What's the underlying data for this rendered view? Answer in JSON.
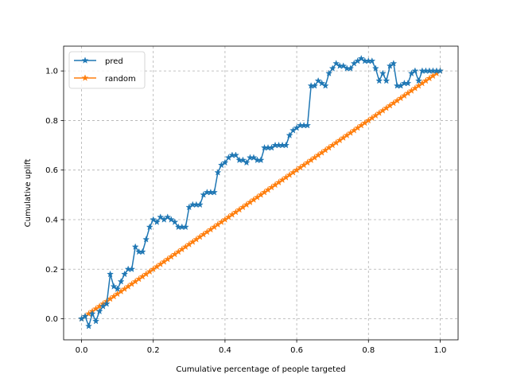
{
  "chart_data": {
    "type": "line",
    "title": "",
    "xlabel": "Cumulative percentage of people targeted",
    "ylabel": "Cumulative uplift",
    "xlim": [
      -0.05,
      1.05
    ],
    "ylim": [
      -0.085,
      1.1
    ],
    "xticks": [
      0.0,
      0.2,
      0.4,
      0.6,
      0.8,
      1.0
    ],
    "yticks": [
      0.0,
      0.2,
      0.4,
      0.6,
      0.8,
      1.0
    ],
    "xtick_labels": [
      "0.0",
      "0.2",
      "0.4",
      "0.6",
      "0.8",
      "1.0"
    ],
    "ytick_labels": [
      "0.0",
      "0.2",
      "0.4",
      "0.6",
      "0.8",
      "1.0"
    ],
    "grid": true,
    "legend_position": "upper-left",
    "series": [
      {
        "name": "pred",
        "color": "#1f77b4",
        "marker": "star",
        "x": [
          0.0,
          0.01,
          0.02,
          0.03,
          0.04,
          0.05,
          0.06,
          0.07,
          0.08,
          0.09,
          0.1,
          0.11,
          0.12,
          0.13,
          0.14,
          0.15,
          0.16,
          0.17,
          0.18,
          0.19,
          0.2,
          0.21,
          0.22,
          0.23,
          0.24,
          0.25,
          0.26,
          0.27,
          0.28,
          0.29,
          0.3,
          0.31,
          0.32,
          0.33,
          0.34,
          0.35,
          0.36,
          0.37,
          0.38,
          0.39,
          0.4,
          0.41,
          0.42,
          0.43,
          0.44,
          0.45,
          0.46,
          0.47,
          0.48,
          0.49,
          0.5,
          0.51,
          0.52,
          0.53,
          0.54,
          0.55,
          0.56,
          0.57,
          0.58,
          0.59,
          0.6,
          0.61,
          0.62,
          0.63,
          0.64,
          0.65,
          0.66,
          0.67,
          0.68,
          0.69,
          0.7,
          0.71,
          0.72,
          0.73,
          0.74,
          0.75,
          0.76,
          0.77,
          0.78,
          0.79,
          0.8,
          0.81,
          0.82,
          0.83,
          0.84,
          0.85,
          0.86,
          0.87,
          0.88,
          0.89,
          0.9,
          0.91,
          0.92,
          0.93,
          0.94,
          0.95,
          0.96,
          0.97,
          0.98,
          0.99,
          1.0
        ],
        "y": [
          0.0,
          0.01,
          -0.03,
          0.02,
          -0.01,
          0.03,
          0.05,
          0.06,
          0.18,
          0.13,
          0.12,
          0.15,
          0.18,
          0.2,
          0.2,
          0.29,
          0.27,
          0.27,
          0.32,
          0.37,
          0.4,
          0.39,
          0.41,
          0.4,
          0.41,
          0.4,
          0.39,
          0.37,
          0.37,
          0.37,
          0.45,
          0.46,
          0.46,
          0.46,
          0.5,
          0.51,
          0.51,
          0.51,
          0.59,
          0.62,
          0.63,
          0.65,
          0.66,
          0.66,
          0.64,
          0.64,
          0.63,
          0.65,
          0.65,
          0.64,
          0.64,
          0.69,
          0.69,
          0.69,
          0.7,
          0.7,
          0.7,
          0.7,
          0.74,
          0.76,
          0.77,
          0.78,
          0.78,
          0.78,
          0.94,
          0.94,
          0.96,
          0.95,
          0.94,
          0.99,
          1.01,
          1.03,
          1.02,
          1.02,
          1.01,
          1.01,
          1.03,
          1.04,
          1.05,
          1.04,
          1.04,
          1.04,
          1.01,
          0.96,
          0.99,
          0.96,
          1.02,
          1.03,
          0.94,
          0.94,
          0.95,
          0.95,
          0.99,
          1.0,
          0.96,
          1.0,
          1.0,
          1.0,
          1.0,
          1.0,
          1.0
        ]
      },
      {
        "name": "random",
        "color": "#ff7f0e",
        "marker": "star",
        "x": "linspace:0:1:101",
        "y": "identity"
      }
    ]
  }
}
